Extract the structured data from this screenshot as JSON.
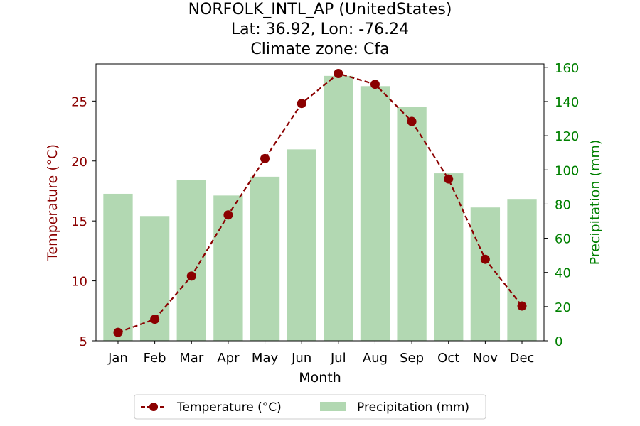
{
  "chart_data": {
    "type": "bar+line",
    "title_lines": [
      "NORFOLK_INTL_AP (UnitedStates)",
      "Lat: 36.92, Lon: -76.24",
      "Climate zone: Cfa"
    ],
    "xlabel": "Month",
    "ylabel_left": "Temperature (°C)",
    "ylabel_right": "Precipitation (mm)",
    "categories": [
      "Jan",
      "Feb",
      "Mar",
      "Apr",
      "May",
      "Jun",
      "Jul",
      "Aug",
      "Sep",
      "Oct",
      "Nov",
      "Dec"
    ],
    "series": [
      {
        "name": "Temperature (°C)",
        "type": "line",
        "axis": "left",
        "color": "#8b0000",
        "values": [
          5.7,
          6.8,
          10.4,
          15.5,
          20.2,
          24.8,
          27.3,
          26.4,
          23.3,
          18.5,
          11.8,
          7.9
        ]
      },
      {
        "name": "Precipitation (mm)",
        "type": "bar",
        "axis": "right",
        "color": "#b2d8b2",
        "values": [
          86,
          73,
          94,
          85,
          96,
          112,
          155,
          149,
          137,
          98,
          78,
          83
        ]
      }
    ],
    "ylim_left": [
      5.0,
      28.1
    ],
    "ylim_right": [
      0,
      162
    ],
    "yticks_left": [
      5,
      10,
      15,
      20,
      25
    ],
    "yticks_right": [
      0,
      20,
      40,
      60,
      80,
      100,
      120,
      140,
      160
    ],
    "left_axis_color": "#8b0000",
    "right_axis_color": "#008000",
    "grid": false,
    "legend_position": "bottom-center"
  }
}
